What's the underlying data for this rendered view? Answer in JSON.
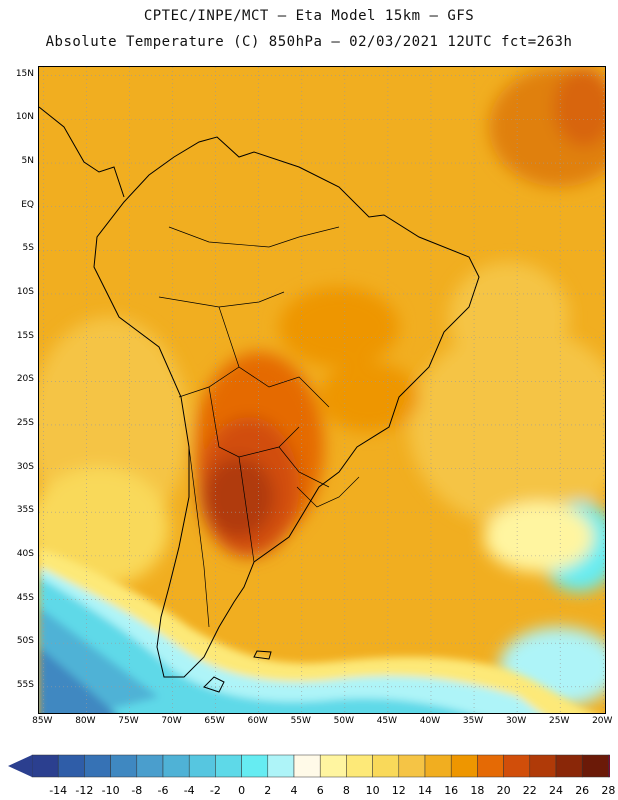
{
  "header": {
    "title_line1": "CPTEC/INPE/MCT –  Eta Model 15km – GFS",
    "title_line2": "Absolute Temperature (C) 850hPa – 02/03/2021 12UTC fct=263h"
  },
  "map": {
    "region": "South America",
    "lat_labels": [
      "15N",
      "10N",
      "5N",
      "EQ",
      "5S",
      "10S",
      "15S",
      "20S",
      "25S",
      "30S",
      "35S",
      "40S",
      "45S",
      "50S",
      "55S"
    ],
    "lon_labels": [
      "85W",
      "80W",
      "75W",
      "70W",
      "65W",
      "60W",
      "55W",
      "50W",
      "45W",
      "40W",
      "35W",
      "30W",
      "25W",
      "20W"
    ],
    "lat_range": [
      -58,
      16
    ],
    "lon_range": [
      -85.5,
      -19.8
    ],
    "grid": true
  },
  "colorbar": {
    "labels": [
      "-14",
      "-12",
      "-10",
      "-8",
      "-6",
      "-4",
      "-2",
      "0",
      "2",
      "4",
      "6",
      "8",
      "10",
      "12",
      "14",
      "16",
      "18",
      "20",
      "22",
      "24",
      "26",
      "28"
    ],
    "colors": [
      "#2b3f8f",
      "#2f5da8",
      "#3672b5",
      "#3f88c1",
      "#4a9ecd",
      "#4fb2d6",
      "#56c6e0",
      "#5ed9e8",
      "#66ecf2",
      "#aef4f8",
      "#fffae8",
      "#fff5a0",
      "#fde978",
      "#f9d95a",
      "#f5c445",
      "#f1ae20",
      "#ee9600",
      "#e56a05",
      "#d14e0a",
      "#b03a08",
      "#8a2708",
      "#6b1a08",
      "#7a0a30"
    ],
    "unit": "C"
  }
}
